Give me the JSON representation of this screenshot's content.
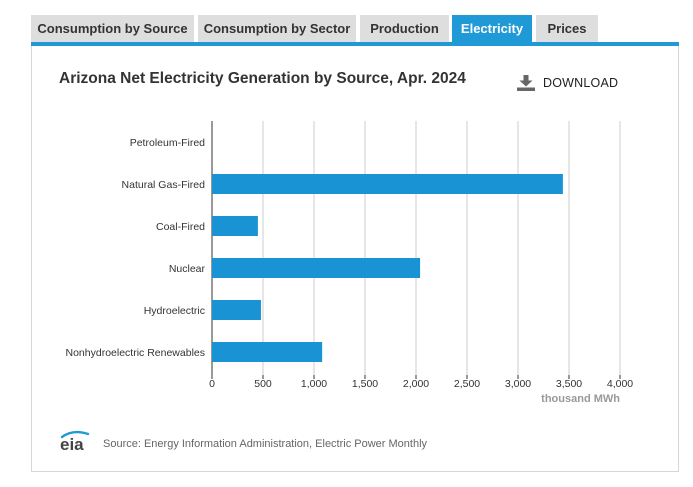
{
  "tabs": [
    {
      "label": "Consumption by Source",
      "active": false
    },
    {
      "label": "Consumption by Sector",
      "active": false
    },
    {
      "label": "Production",
      "active": false
    },
    {
      "label": "Electricity",
      "active": true
    },
    {
      "label": "Prices",
      "active": false
    }
  ],
  "download_label": "DOWNLOAD",
  "source_text": "Source: Energy Information Administration, Electric Power Monthly",
  "logo_text": "eia",
  "colors": {
    "accent": "#1f9ad6",
    "bar": "#1a93d5",
    "grid": "#cccccc",
    "axis_label": "#999999"
  },
  "chart_data": {
    "type": "bar",
    "orientation": "horizontal",
    "title": "Arizona Net Electricity Generation by Source, Apr. 2024",
    "categories": [
      "Petroleum-Fired",
      "Natural Gas-Fired",
      "Coal-Fired",
      "Nuclear",
      "Hydroelectric",
      "Nonhydroelectric Renewables"
    ],
    "values": [
      0,
      3440,
      450,
      2040,
      480,
      1080
    ],
    "xlabel": "thousand MWh",
    "ylabel": "",
    "xlim": [
      0,
      4000
    ],
    "xticks": [
      0,
      500,
      1000,
      1500,
      2000,
      2500,
      3000,
      3500,
      4000
    ],
    "xtick_labels": [
      "0",
      "500",
      "1,000",
      "1,500",
      "2,000",
      "2,500",
      "3,000",
      "3,500",
      "4,000"
    ],
    "grid": true,
    "legend": "none"
  }
}
